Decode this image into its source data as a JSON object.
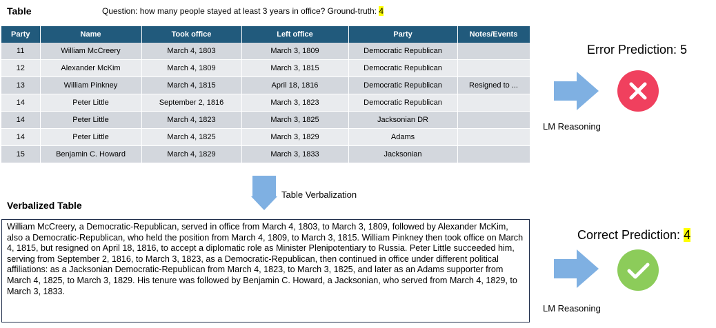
{
  "table_section": {
    "title": "Table",
    "question": "Question: how many people stayed at least 3 years in office? Ground-truth:",
    "ground_truth": "4"
  },
  "table": {
    "header": [
      "Party",
      "Name",
      "Took office",
      "Left office",
      "Party",
      "Notes/Events"
    ],
    "rows": [
      [
        "11",
        "William McCreery",
        "March 4, 1803",
        "March 3, 1809",
        "Democratic Republican",
        ""
      ],
      [
        "12",
        "Alexander McKim",
        "March 4, 1809",
        "March 3, 1815",
        "Democratic Republican",
        ""
      ],
      [
        "13",
        "William Pinkney",
        "March 4, 1815",
        "April 18, 1816",
        "Democratic Republican",
        "Resigned to ..."
      ],
      [
        "14",
        "Peter Little",
        "September 2, 1816",
        "March 3, 1823",
        "Democratic Republican",
        ""
      ],
      [
        "14",
        "Peter Little",
        "March 4, 1823",
        "March 3, 1825",
        "Jacksonian DR",
        ""
      ],
      [
        "14",
        "Peter Little",
        "March 4, 1825",
        "March 3, 1829",
        "Adams",
        ""
      ],
      [
        "15",
        "Benjamin C. Howard",
        "March 4, 1829",
        "March 3, 1833",
        "Jacksonian",
        ""
      ]
    ]
  },
  "verbalization": {
    "arrow_label": "Table Verbalization",
    "title": "Verbalized Table",
    "text": "William McCreery, a Democratic-Republican, served in office from March 4, 1803, to March 3, 1809, followed by Alexander McKim, also a Democratic-Republican, who held the position from March 4, 1809, to March 3, 1815. William Pinkney then took office on March 4, 1815, but resigned on April 18, 1816, to accept a diplomatic role as Minister Plenipotentiary to Russia. Peter Little succeeded him, serving from September 2, 1816, to March 3, 1823, as a Democratic-Republican, then continued in office under different political affiliations: as a Jacksonian Democratic-Republican from March 4, 1823, to March 3, 1825, and later as an Adams supporter from March 4, 1825, to March 3, 1829. His tenure was followed by Benjamin C. Howard, a Jacksonian, who served from March 4, 1829, to March 3, 1833."
  },
  "error_prediction": {
    "label": "Error Prediction: 5",
    "reasoning": "LM Reasoning"
  },
  "correct_prediction": {
    "label": "Correct Prediction:",
    "value": "4",
    "reasoning": "LM Reasoning"
  }
}
